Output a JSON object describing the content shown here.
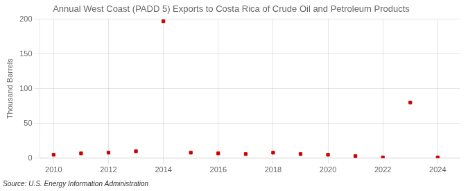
{
  "chart_data": {
    "type": "scatter",
    "title": "Annual West Coast (PADD 5) Exports to Costa Rica of Crude Oil and Petroleum Products",
    "ylabel": "Thousand Barrels",
    "annotation": "Source: U.S. Energy Information Administration",
    "x": [
      2010,
      2011,
      2012,
      2013,
      2014,
      2015,
      2016,
      2017,
      2018,
      2019,
      2020,
      2021,
      2022,
      2023,
      2024
    ],
    "values": [
      5,
      7,
      8,
      10,
      197,
      8,
      7,
      6,
      8,
      6,
      5,
      3,
      1,
      80,
      1
    ],
    "color": "#cc0000",
    "marker": "square",
    "xlim": [
      2009.5,
      2024.8
    ],
    "ylim": [
      0,
      200
    ],
    "xticks": [
      2010,
      2012,
      2014,
      2016,
      2018,
      2020,
      2022,
      2024
    ],
    "yticks": [
      0,
      50,
      100,
      150,
      200
    ],
    "grid": true
  }
}
